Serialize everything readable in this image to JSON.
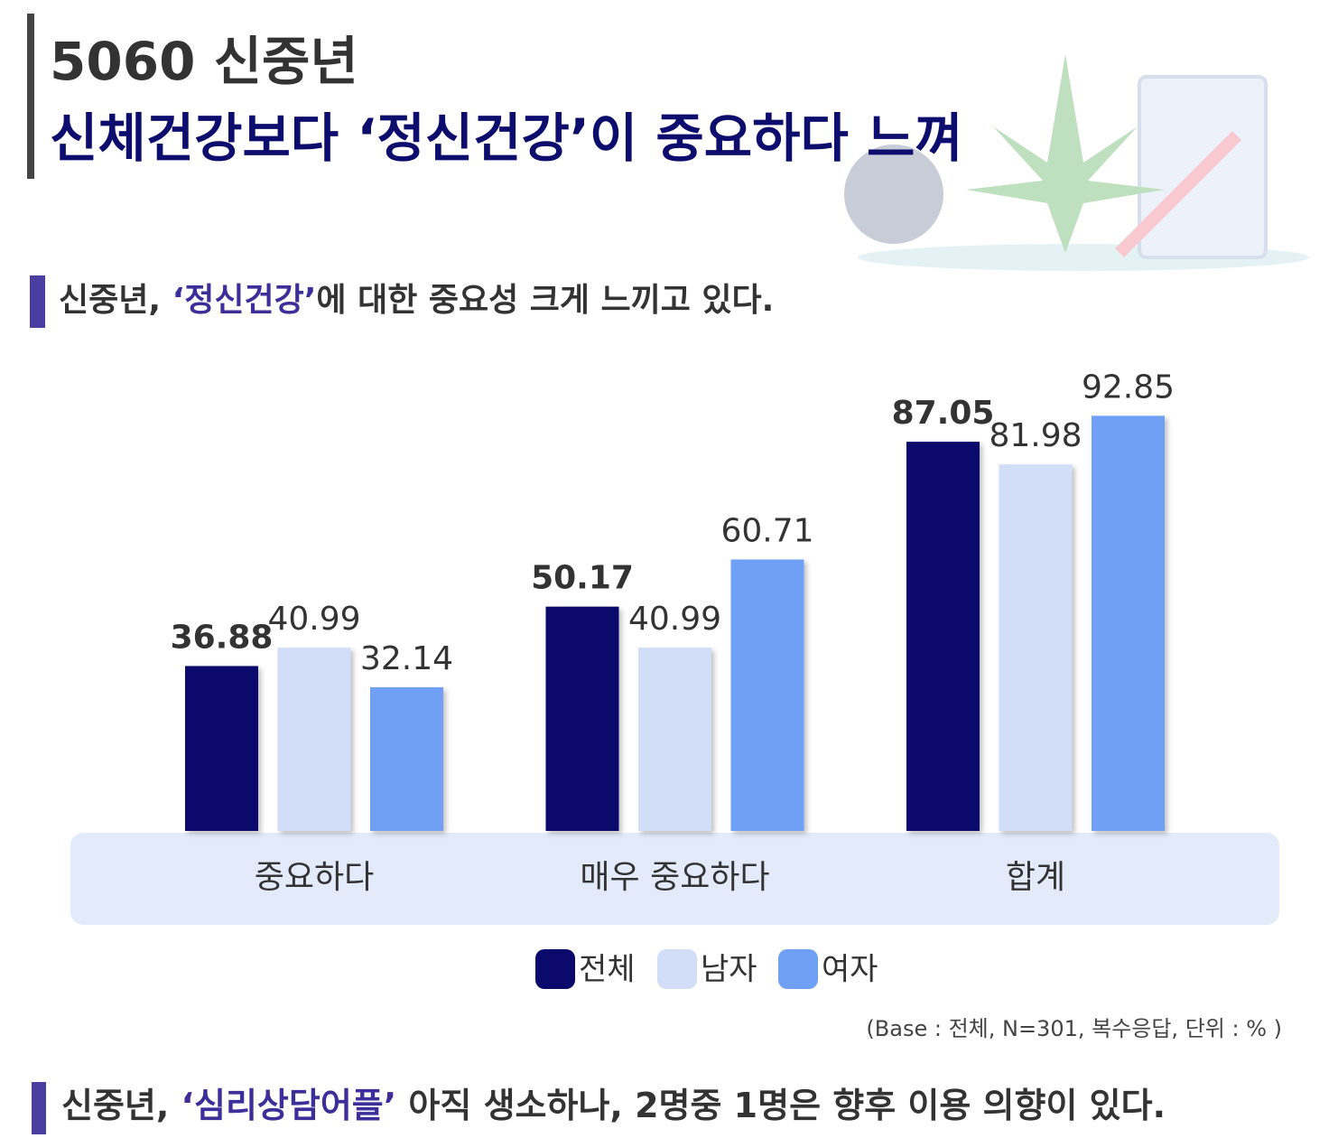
{
  "header": {
    "line1": "5060 신중년",
    "line2": "신체건강보다 ‘정신건강’이 중요하다 느껴"
  },
  "subtitle": {
    "parts": [
      "신중년, ",
      "‘정신건강’",
      "에 대한 중요성 크게 느끼고 있다."
    ]
  },
  "chart_data": {
    "type": "bar",
    "categories": [
      "중요하다",
      "매우 중요하다",
      "합계"
    ],
    "series": [
      {
        "name": "전체",
        "color": "#0b0a6c",
        "values": [
          36.88,
          50.17,
          87.05
        ]
      },
      {
        "name": "남자",
        "color": "#d2def7",
        "values": [
          40.99,
          40.99,
          81.98
        ]
      },
      {
        "name": "여자",
        "color": "#70a0f5",
        "values": [
          32.14,
          60.71,
          92.85
        ]
      }
    ],
    "ylim": [
      0,
      100
    ]
  },
  "footnote": "(Base : 전체, N=301, 복수응답, 단위 : % )",
  "next_heading": {
    "parts": [
      "신중년, ",
      "‘심리상담어플’",
      " 아직 생소하나, 2명중 1명은 향후 이용 의향이 있다."
    ]
  }
}
